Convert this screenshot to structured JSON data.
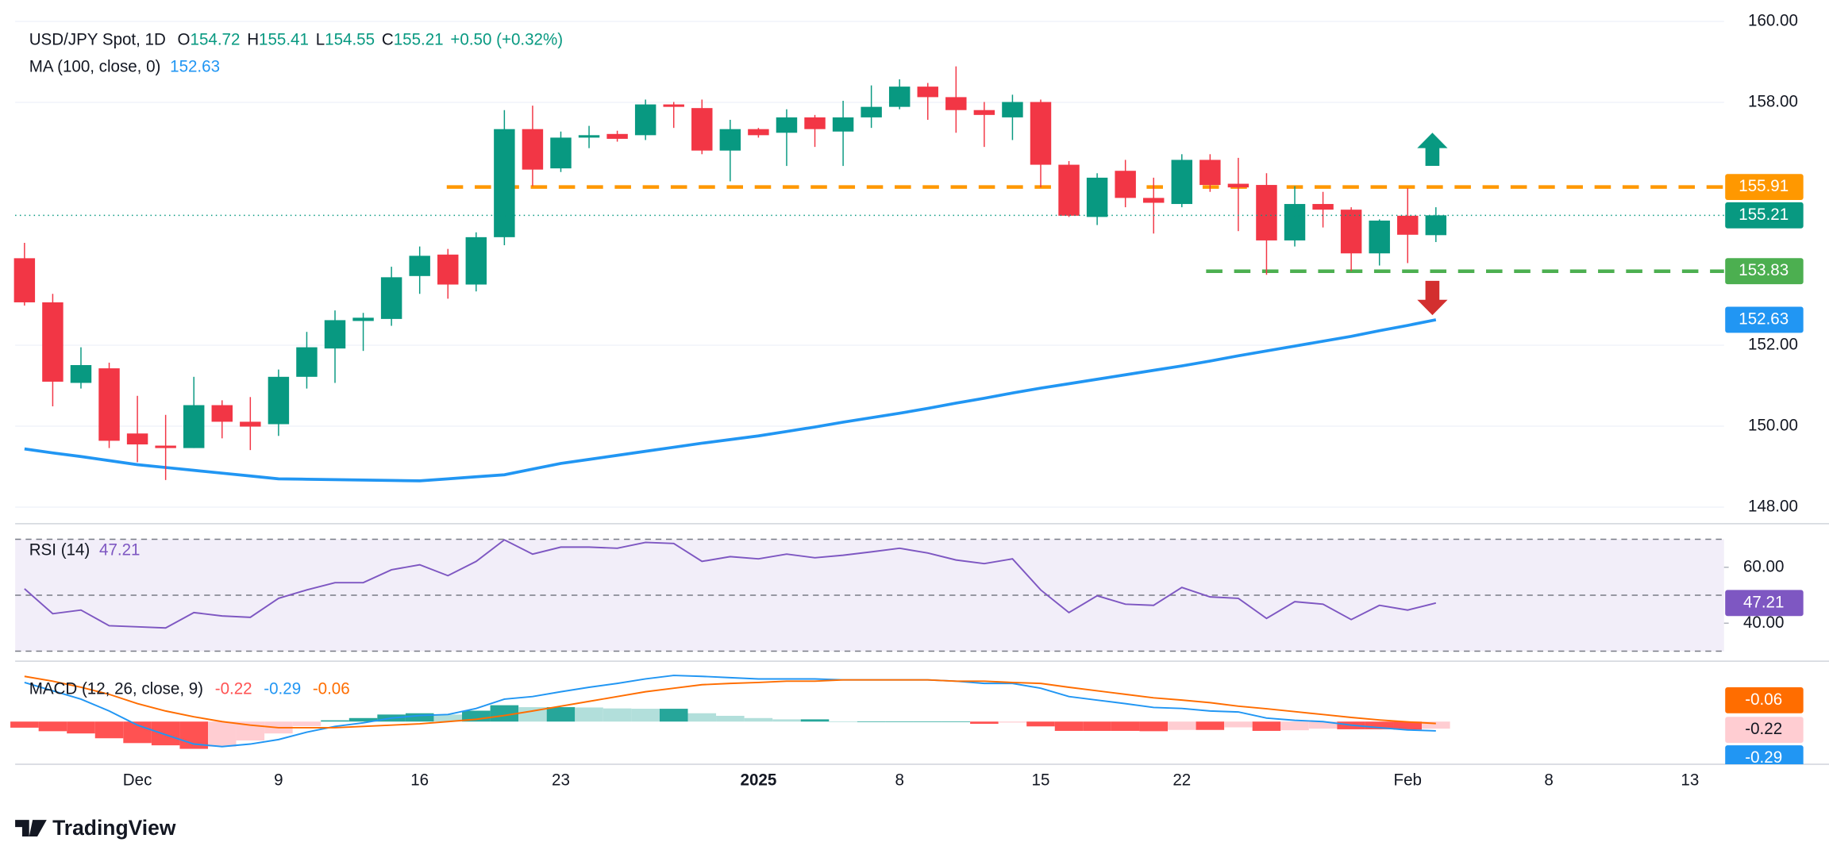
{
  "branding": "TradingView",
  "chart_data": [
    {
      "type": "candlestick",
      "title": "USD/JPY Spot, 1D",
      "ohlc_labels": [
        "O",
        "H",
        "L",
        "C"
      ],
      "change_label": "+0.50 (+0.32%)",
      "categories": [
        null,
        null,
        null,
        null,
        "Dec",
        null,
        null,
        null,
        null,
        "9",
        null,
        null,
        null,
        null,
        "16",
        null,
        null,
        null,
        null,
        "23",
        null,
        null,
        null,
        null,
        null,
        null,
        "2025",
        null,
        null,
        null,
        null,
        "8",
        null,
        null,
        null,
        null,
        "15",
        null,
        null,
        null,
        null,
        "22",
        null,
        null,
        null,
        null,
        null,
        null,
        null,
        "Feb",
        null,
        null,
        null,
        null,
        "8",
        null,
        null,
        null,
        null,
        "13"
      ],
      "open": [
        154.15,
        153.06,
        151.07,
        151.43,
        149.82,
        149.52,
        149.46,
        150.52,
        150.11,
        150.05,
        151.22,
        151.92,
        152.6,
        152.65,
        153.71,
        154.24,
        153.5,
        154.67,
        157.34,
        156.37,
        157.13,
        157.22,
        157.19,
        157.95,
        157.86,
        156.81,
        157.34,
        157.25,
        157.63,
        157.28,
        157.63,
        157.89,
        158.39,
        158.13,
        157.81,
        157.63,
        158.01,
        156.46,
        155.17,
        156.31,
        155.64,
        155.49,
        156.58,
        155.99,
        155.96,
        154.59,
        155.49,
        155.35,
        154.27,
        155.2,
        154.72,
        null,
        null,
        null,
        null,
        null,
        null,
        null,
        null,
        null
      ],
      "high": [
        154.53,
        153.27,
        151.95,
        151.57,
        150.75,
        150.28,
        151.22,
        150.64,
        150.72,
        151.4,
        152.33,
        152.86,
        152.8,
        153.94,
        154.44,
        154.38,
        154.79,
        157.81,
        157.92,
        157.28,
        157.42,
        157.3,
        158.07,
        158.01,
        158.07,
        157.57,
        157.37,
        157.83,
        157.69,
        158.04,
        158.42,
        158.57,
        158.48,
        158.89,
        158.01,
        158.19,
        158.07,
        156.55,
        156.25,
        156.58,
        156.14,
        156.72,
        156.72,
        156.63,
        156.25,
        155.93,
        155.79,
        155.41,
        155.11,
        155.88,
        155.41,
        null,
        null,
        null,
        null,
        null,
        null,
        null,
        null,
        null
      ],
      "low": [
        152.98,
        150.49,
        150.93,
        149.46,
        149.11,
        148.67,
        149.46,
        149.7,
        149.41,
        149.76,
        150.93,
        151.07,
        151.86,
        152.48,
        153.27,
        153.15,
        153.33,
        154.47,
        155.93,
        156.28,
        156.87,
        157.03,
        157.07,
        157.37,
        156.72,
        156.05,
        157.13,
        156.43,
        156.9,
        156.43,
        157.37,
        157.83,
        157.57,
        157.25,
        156.9,
        157.07,
        155.9,
        155.17,
        154.97,
        155.41,
        154.76,
        155.41,
        155.79,
        154.82,
        153.74,
        154.44,
        154.91,
        153.83,
        153.97,
        154.03,
        154.55,
        null,
        null,
        null,
        null,
        null,
        null,
        null,
        null,
        null
      ],
      "close": [
        153.06,
        151.1,
        151.51,
        149.64,
        149.55,
        149.46,
        150.52,
        150.11,
        149.99,
        151.22,
        151.95,
        152.62,
        152.68,
        153.68,
        154.21,
        153.5,
        154.67,
        157.34,
        156.34,
        157.13,
        157.19,
        157.1,
        157.95,
        157.89,
        156.81,
        157.34,
        157.19,
        157.63,
        157.34,
        157.63,
        157.89,
        158.39,
        158.13,
        157.81,
        157.69,
        158.01,
        156.46,
        155.2,
        156.14,
        155.64,
        155.52,
        156.58,
        155.96,
        155.9,
        154.59,
        155.49,
        155.35,
        154.27,
        155.08,
        154.73,
        155.21,
        null,
        null,
        null,
        null,
        null,
        null,
        null,
        null,
        null
      ],
      "up_color": "#089981",
      "down_color": "#f23645",
      "overlay": {
        "name": "MA (100, close, 0)",
        "color": "#2196f3",
        "values": [
          149.44,
          149.34,
          149.25,
          149.15,
          149.05,
          148.98,
          148.91,
          148.84,
          148.77,
          148.7,
          148.69,
          148.68,
          148.67,
          148.66,
          148.65,
          148.7,
          148.75,
          148.8,
          148.94,
          149.08,
          149.18,
          149.28,
          149.38,
          149.48,
          149.58,
          149.67,
          149.76,
          149.87,
          149.98,
          150.1,
          150.21,
          150.32,
          150.44,
          150.57,
          150.69,
          150.82,
          150.94,
          151.05,
          151.16,
          151.27,
          151.38,
          151.49,
          151.61,
          151.74,
          151.86,
          151.98,
          152.1,
          152.22,
          152.36,
          152.49,
          152.63,
          null,
          null,
          null,
          null,
          null,
          null,
          null,
          null,
          null
        ]
      },
      "levels": [
        {
          "value": 155.91,
          "color": "#ff9800"
        },
        {
          "value": 153.83,
          "color": "#4caf50"
        }
      ],
      "ylim": [
        147.62,
        160.53
      ],
      "yticks": [
        {
          "value": 148,
          "label": "148.00"
        },
        {
          "value": 150,
          "label": "150.00"
        },
        {
          "value": 152,
          "label": "152.00"
        },
        {
          "value": 158,
          "label": "158.00"
        },
        {
          "value": 160,
          "label": "160.00"
        }
      ],
      "grid": true
    },
    {
      "type": "line",
      "title": "RSI (14)",
      "color": "#7e57c2",
      "values": [
        52.3,
        43.4,
        44.7,
        39.1,
        38.7,
        38.3,
        43.8,
        42.6,
        42.1,
        48.9,
        51.9,
        54.5,
        54.5,
        59.1,
        60.9,
        57.0,
        62.1,
        69.8,
        64.7,
        67.2,
        67.2,
        66.8,
        68.9,
        68.5,
        62.1,
        63.8,
        63.0,
        64.7,
        63.4,
        64.3,
        65.5,
        66.8,
        65.1,
        62.6,
        61.3,
        63.0,
        51.9,
        43.8,
        49.8,
        46.8,
        46.4,
        52.8,
        49.4,
        48.9,
        41.7,
        47.7,
        46.8,
        41.3,
        46.4,
        44.7,
        47.21,
        null,
        null,
        null,
        null,
        null,
        null,
        null,
        null,
        null
      ],
      "levels": [
        70,
        50,
        30
      ],
      "ylim": [
        27.7,
        74.3
      ],
      "yticks": [
        {
          "value": 60,
          "label": "60.00"
        },
        {
          "value": 40,
          "label": "40.00"
        }
      ]
    },
    {
      "type": "macd",
      "title": "MACD (12, 26, close, 9)",
      "histogram": {
        "colors": [
          "#26a69a",
          "#b2dfdb",
          "#ff5252",
          "#ffcdd2"
        ],
        "values": [
          -0.19,
          -0.3,
          -0.37,
          -0.52,
          -0.67,
          -0.74,
          -0.85,
          -0.78,
          -0.59,
          -0.37,
          -0.14,
          0.04,
          0.11,
          0.22,
          0.26,
          0.22,
          0.34,
          0.51,
          0.45,
          0.45,
          0.44,
          0.41,
          0.4,
          0.4,
          0.26,
          0.18,
          0.11,
          0.07,
          0.07,
          0,
          0,
          0,
          0,
          0,
          -0.07,
          -0.03,
          -0.15,
          -0.29,
          -0.29,
          -0.29,
          -0.3,
          -0.26,
          -0.26,
          -0.18,
          -0.29,
          -0.27,
          -0.22,
          -0.24,
          -0.24,
          -0.25,
          -0.22,
          null,
          null,
          null,
          null,
          null,
          null,
          null,
          null,
          null
        ]
      },
      "macd": {
        "color": "#2196f3",
        "values": [
          1.22,
          0.96,
          0.7,
          0.33,
          -0.11,
          -0.41,
          -0.7,
          -0.78,
          -0.7,
          -0.56,
          -0.33,
          -0.15,
          -0.04,
          0.11,
          0.19,
          0.22,
          0.41,
          0.7,
          0.78,
          0.93,
          1.07,
          1.19,
          1.33,
          1.44,
          1.41,
          1.37,
          1.33,
          1.33,
          1.33,
          1.3,
          1.3,
          1.3,
          1.3,
          1.26,
          1.19,
          1.19,
          1.04,
          0.78,
          0.67,
          0.56,
          0.44,
          0.41,
          0.33,
          0.3,
          0.11,
          0.04,
          0,
          -0.11,
          -0.19,
          -0.26,
          -0.29,
          null,
          null,
          null,
          null,
          null,
          null,
          null,
          null,
          null
        ]
      },
      "signal": {
        "color": "#ff6d00",
        "values": [
          1.41,
          1.26,
          1.07,
          0.85,
          0.56,
          0.33,
          0.15,
          0,
          -0.11,
          -0.19,
          -0.19,
          -0.19,
          -0.15,
          -0.11,
          -0.07,
          0,
          0.07,
          0.19,
          0.33,
          0.48,
          0.63,
          0.78,
          0.93,
          1.04,
          1.15,
          1.19,
          1.22,
          1.26,
          1.26,
          1.3,
          1.3,
          1.3,
          1.3,
          1.26,
          1.26,
          1.22,
          1.19,
          1.07,
          0.96,
          0.85,
          0.74,
          0.67,
          0.59,
          0.48,
          0.4,
          0.31,
          0.22,
          0.13,
          0.05,
          -0.01,
          -0.06,
          null,
          null,
          null,
          null,
          null,
          null,
          null,
          null,
          null
        ]
      },
      "ylim": [
        -1.33,
        1.81
      ]
    }
  ]
}
